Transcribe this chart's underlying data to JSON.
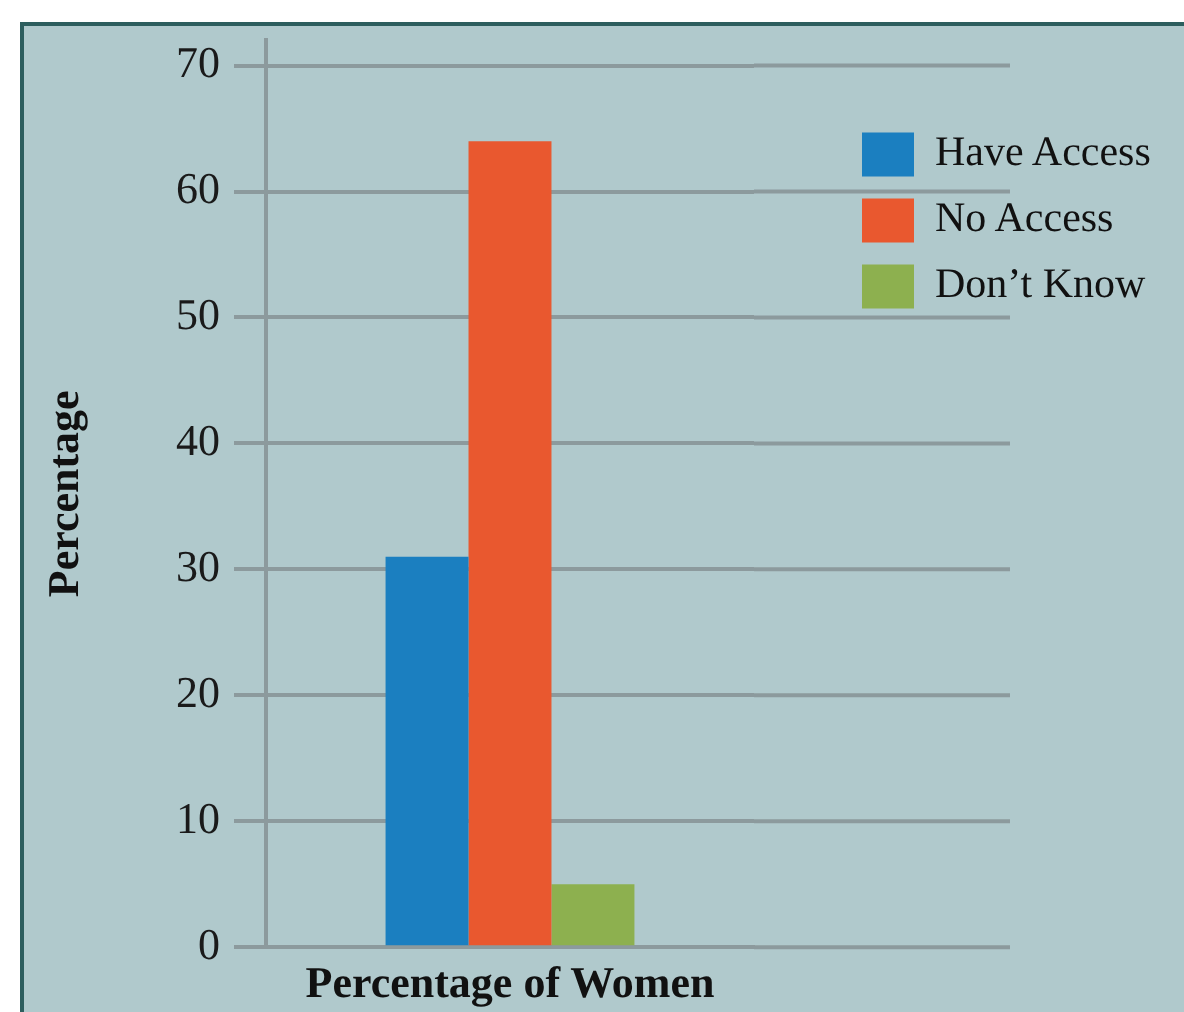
{
  "chart_data": {
    "type": "bar",
    "xlabel": "Percentage of Women",
    "ylabel": "Percentage",
    "categories": [
      null
    ],
    "series": [
      {
        "name": "Have Access",
        "color": "#1b7fc0",
        "values": [
          31
        ]
      },
      {
        "name": "No Access",
        "color": "#e9582f",
        "values": [
          64
        ]
      },
      {
        "name": "Don’t Know",
        "color": "#8db04f",
        "values": [
          5
        ]
      }
    ],
    "ylim": [
      0,
      72
    ],
    "yticks": [
      0,
      10,
      20,
      30,
      40,
      50,
      60,
      70
    ],
    "grid": "y",
    "legend": "top right"
  }
}
